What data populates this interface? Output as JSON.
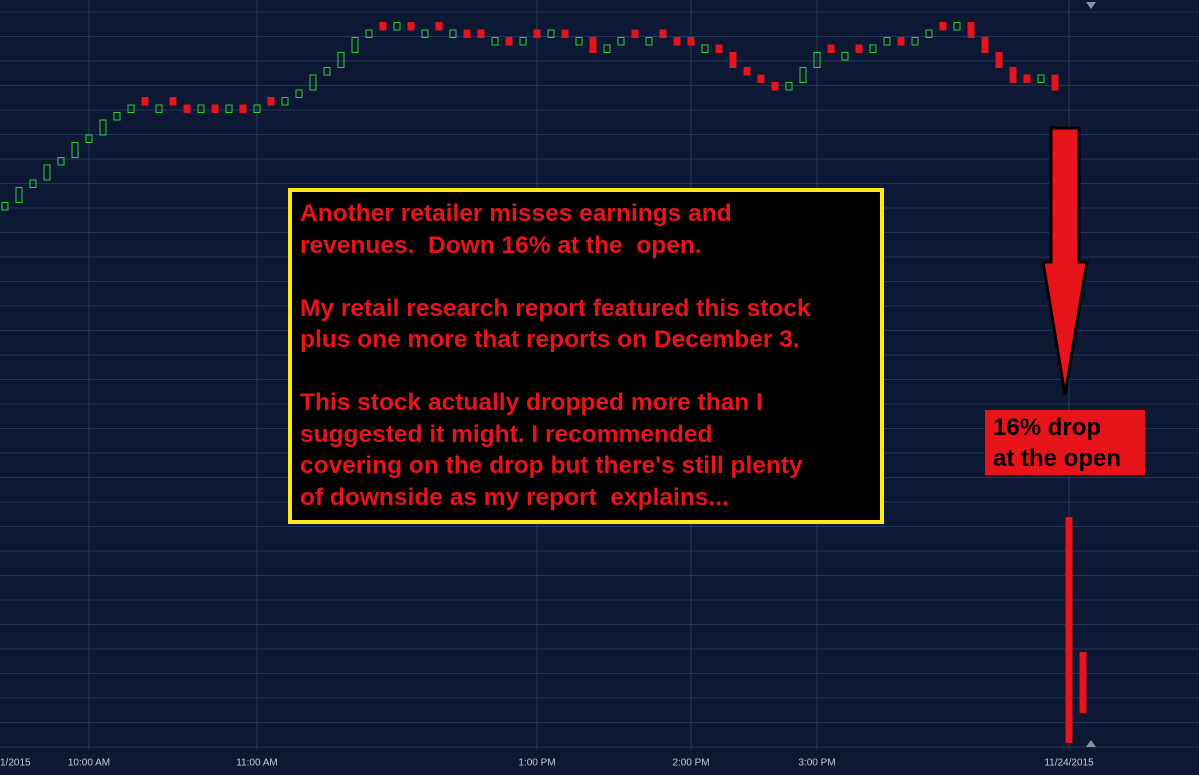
{
  "chart_data": {
    "type": "candlestick",
    "categories": [
      "1/2015",
      null,
      null,
      null,
      null,
      null,
      "10:00 AM",
      null,
      null,
      null,
      null,
      null,
      null,
      null,
      null,
      null,
      null,
      null,
      "11:00 AM",
      null,
      null,
      null,
      null,
      null,
      null,
      null,
      null,
      null,
      null,
      null,
      null,
      null,
      null,
      null,
      null,
      null,
      null,
      null,
      "1:00 PM",
      null,
      null,
      null,
      null,
      null,
      null,
      null,
      null,
      null,
      null,
      "2:00 PM",
      null,
      null,
      null,
      null,
      null,
      null,
      null,
      null,
      "3:00 PM",
      null,
      null,
      null,
      null,
      null,
      null,
      null,
      null,
      null,
      null,
      null,
      null,
      null,
      null,
      null,
      null,
      null,
      "11/24/2015",
      null
    ],
    "open": [
      72,
      73,
      75,
      76,
      78,
      79,
      81,
      82,
      84,
      85,
      87,
      85,
      87,
      86,
      85,
      86,
      85,
      86,
      85,
      87,
      86,
      87,
      88,
      90,
      91,
      93,
      95,
      97,
      96,
      97,
      95,
      97,
      95,
      96,
      96,
      94,
      95,
      94,
      96,
      95,
      96,
      94,
      95,
      93,
      94,
      96,
      94,
      96,
      95,
      95,
      93,
      94,
      93,
      91,
      90,
      89,
      88,
      89,
      91,
      94,
      92,
      94,
      93,
      94,
      95,
      94,
      95,
      97,
      96,
      97,
      95,
      93,
      91,
      90,
      89,
      90,
      31,
      13
    ],
    "close": [
      73,
      75,
      76,
      78,
      79,
      81,
      82,
      84,
      85,
      86,
      86,
      86,
      86,
      85,
      86,
      85,
      86,
      85,
      86,
      86,
      87,
      88,
      90,
      91,
      93,
      95,
      96,
      96,
      97,
      96,
      96,
      96,
      96,
      95,
      95,
      95,
      94,
      95,
      95,
      96,
      95,
      95,
      93,
      94,
      95,
      95,
      95,
      95,
      94,
      94,
      94,
      93,
      91,
      90,
      89,
      88,
      89,
      91,
      93,
      93,
      93,
      93,
      94,
      95,
      94,
      95,
      96,
      96,
      97,
      95,
      93,
      91,
      89,
      89,
      90,
      88,
      1,
      5
    ],
    "ylim": [
      0,
      100
    ],
    "up_color": "#2fd12f",
    "down_color": "#e8141c",
    "grid": true,
    "annotation": [
      [
        "Another retailer misses earnings and",
        "revenues.  Down 16% at the  open."
      ],
      [
        "My retail research report featured this stock",
        "plus one more that reports on December 3."
      ],
      [
        "This stock actually dropped more than I",
        "suggested it might. I recommended",
        "covering on the drop but there's still plenty",
        "of downside as my report  explains..."
      ]
    ],
    "callout": [
      "16% drop",
      "at the open"
    ]
  }
}
